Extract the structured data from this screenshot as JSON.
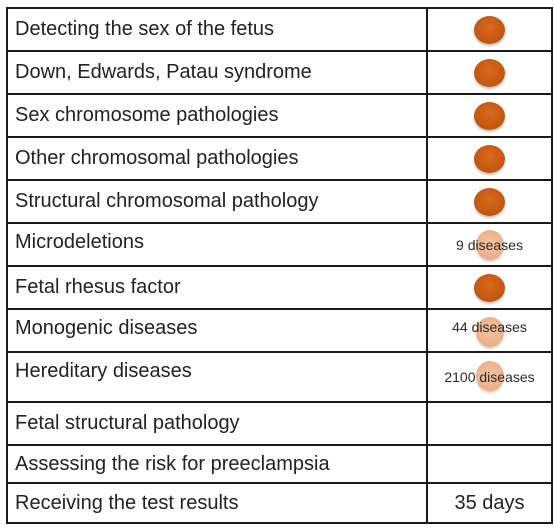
{
  "rows": [
    {
      "label": "Detecting the sex of the fetus",
      "type": "dot"
    },
    {
      "label": "Down, Edwards, Patau syndrome",
      "type": "dot"
    },
    {
      "label": "Sex chromosome pathologies",
      "type": "dot"
    },
    {
      "label": "Other chromosomal pathologies",
      "type": "dot"
    },
    {
      "label": "Structural chromosomal pathology",
      "type": "dot"
    },
    {
      "label": "Microdeletions",
      "type": "soft",
      "note": "9 diseases"
    },
    {
      "label": "Fetal rhesus factor",
      "type": "dot"
    },
    {
      "label": "Monogenic diseases",
      "type": "soft",
      "note": "44 diseases"
    },
    {
      "label": "Hereditary diseases",
      "type": "soft",
      "note": "2100 diseases"
    },
    {
      "label": "Fetal structural pathology",
      "type": "empty"
    },
    {
      "label": "Assessing the risk for preeclampsia",
      "type": "empty"
    },
    {
      "label": "Receiving the test results",
      "type": "text",
      "value": "35 days"
    }
  ],
  "colors": {
    "dot": "#c2560f",
    "soft_dot": "#ebaf88",
    "border": "#1a1a1a"
  }
}
